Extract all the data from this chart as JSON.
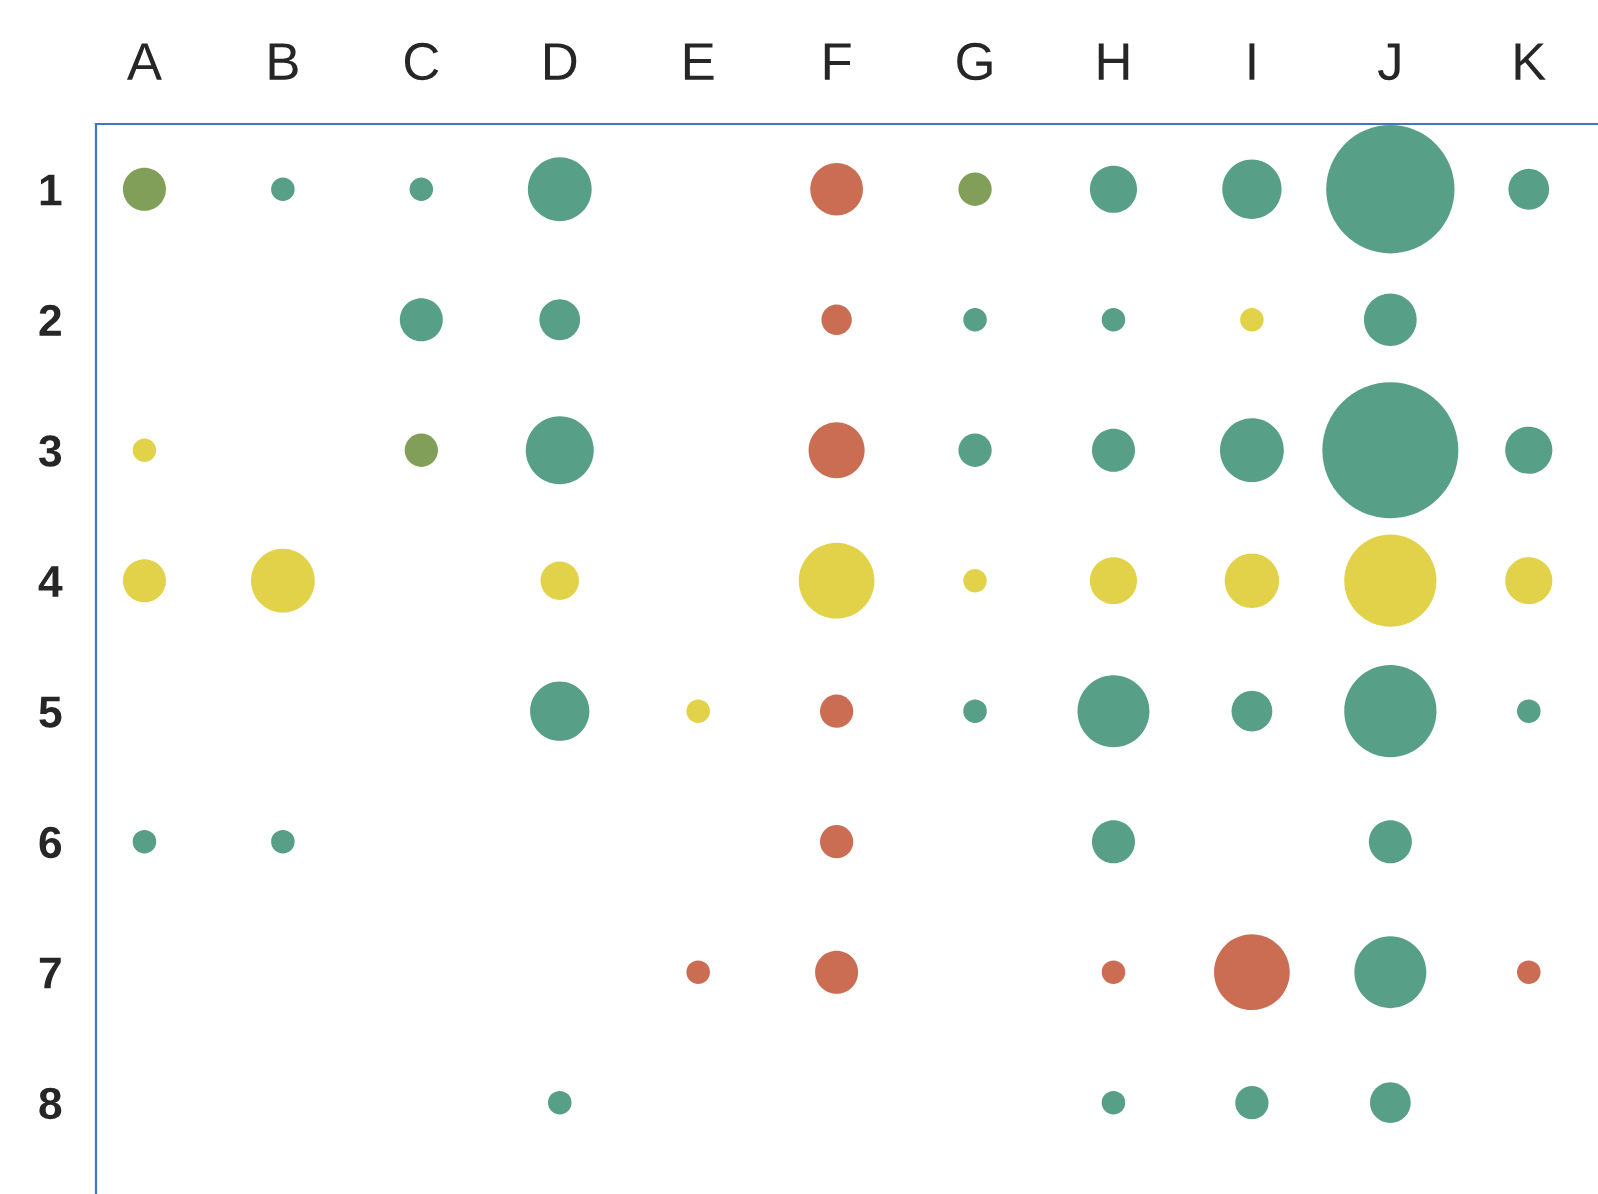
{
  "chart_data": {
    "type": "bubble",
    "categories": [
      "A",
      "B",
      "C",
      "D",
      "E",
      "F",
      "G",
      "H",
      "I",
      "J",
      "K"
    ],
    "ylim": [
      8.7,
      0.5
    ],
    "yticks": [
      1,
      2,
      3,
      4,
      5,
      6,
      7,
      8
    ],
    "grid": false,
    "legend": false,
    "series": [
      {
        "color": "#4e9a80",
        "x": [
          "B",
          "C",
          "D",
          "H",
          "I",
          "J",
          "K",
          "C",
          "D",
          "G",
          "H",
          "J",
          "D",
          "G",
          "H",
          "I",
          "J",
          "K",
          "D",
          "G",
          "H",
          "I",
          "J",
          "K",
          "A",
          "B",
          "H",
          "J",
          "J",
          "D",
          "H",
          "I",
          "J"
        ],
        "values": [
          1,
          1,
          1,
          1,
          1,
          1,
          1,
          2,
          2,
          2,
          2,
          2,
          3,
          3,
          3,
          3,
          3,
          3,
          5,
          5,
          5,
          5,
          5,
          5,
          6,
          6,
          6,
          6,
          7,
          8,
          8,
          8,
          8
        ],
        "sizes": [
          0.03,
          0.03,
          0.22,
          0.12,
          0.19,
          0.89,
          0.09,
          0.1,
          0.09,
          0.03,
          0.03,
          0.15,
          0.25,
          0.06,
          0.1,
          0.22,
          1,
          0.12,
          0.19,
          0.03,
          0.28,
          0.09,
          0.46,
          0.03,
          0.03,
          0.03,
          0.1,
          0.1,
          0.28,
          0.03,
          0.03,
          0.06,
          0.09
        ]
      },
      {
        "color": "#e0d040",
        "x": [
          "I",
          "A",
          "A",
          "B",
          "D",
          "F",
          "G",
          "H",
          "I",
          "J",
          "K",
          "E"
        ],
        "values": [
          2,
          3,
          4,
          4,
          4,
          4,
          4,
          4,
          4,
          4,
          4,
          5
        ],
        "sizes": [
          0.03,
          0.03,
          0.1,
          0.22,
          0.08,
          0.31,
          0.03,
          0.12,
          0.16,
          0.46,
          0.12,
          0.03
        ]
      },
      {
        "color": "#c8654a",
        "x": [
          "F",
          "F",
          "F",
          "F",
          "F",
          "E",
          "F",
          "H",
          "I",
          "K"
        ],
        "values": [
          1,
          2,
          3,
          5,
          6,
          7,
          7,
          7,
          7,
          7
        ],
        "sizes": [
          0.15,
          0.05,
          0.17,
          0.06,
          0.06,
          0.03,
          0.1,
          0.03,
          0.31,
          0.03
        ]
      },
      {
        "color": "#7a9a50",
        "x": [
          "A",
          "G",
          "C"
        ],
        "values": [
          1,
          1,
          3
        ],
        "sizes": [
          0.1,
          0.06,
          0.06
        ]
      }
    ]
  }
}
